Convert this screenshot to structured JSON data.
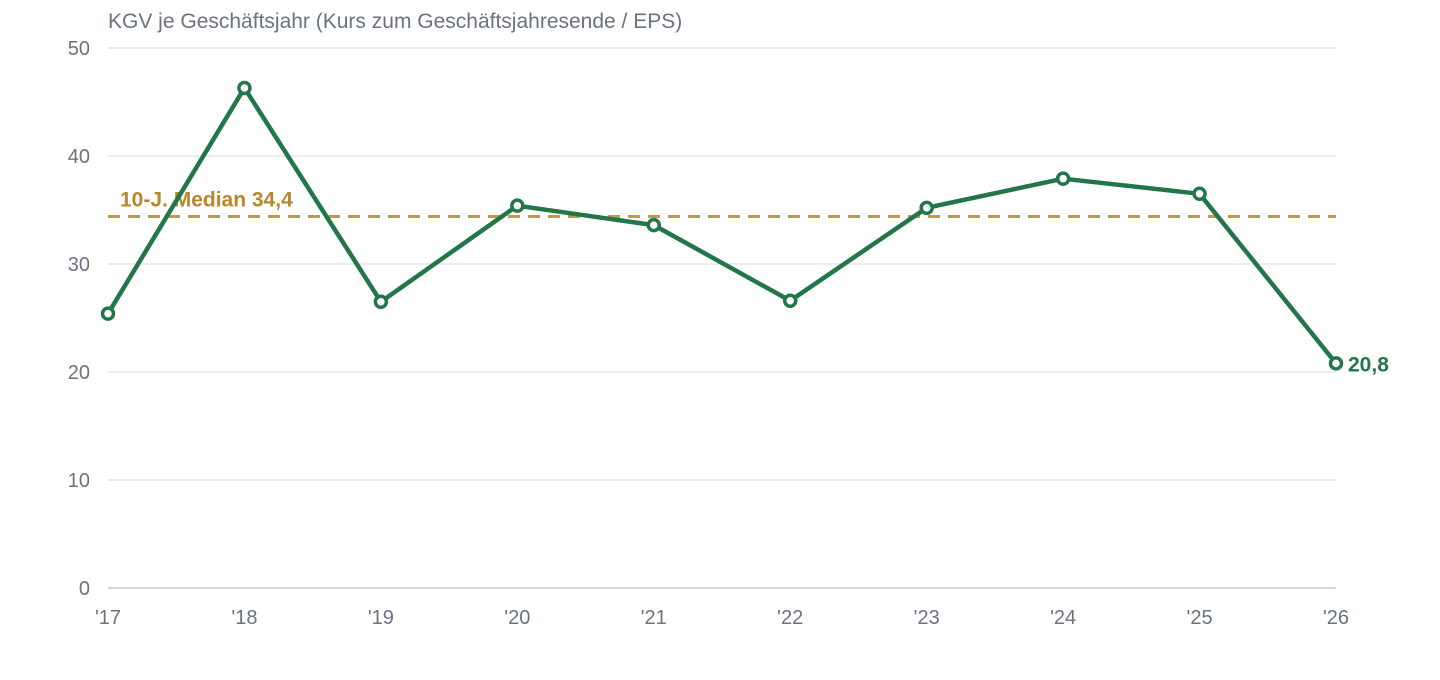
{
  "chart_data": {
    "type": "line",
    "title": "KGV je Geschäftsjahr (Kurs zum Geschäftsjahresende / EPS)",
    "categories": [
      "'17",
      "'18",
      "'19",
      "'20",
      "'21",
      "'22",
      "'23",
      "'24",
      "'25",
      "'26"
    ],
    "series": [
      {
        "values": [
          25.4,
          46.3,
          26.5,
          35.4,
          33.6,
          26.6,
          35.2,
          37.9,
          36.5,
          20.8
        ]
      }
    ],
    "ylim": [
      0,
      50
    ],
    "yticks": [
      0,
      10,
      20,
      30,
      40,
      50
    ],
    "grid": true,
    "median": {
      "value": 34.4,
      "label": "10-J. Median 34,4"
    },
    "last_value_label": "20,8",
    "colors": {
      "line": "#23764a",
      "median": "#c49a3a",
      "grid": "#e5e7eb",
      "text": "#6b7280"
    }
  }
}
